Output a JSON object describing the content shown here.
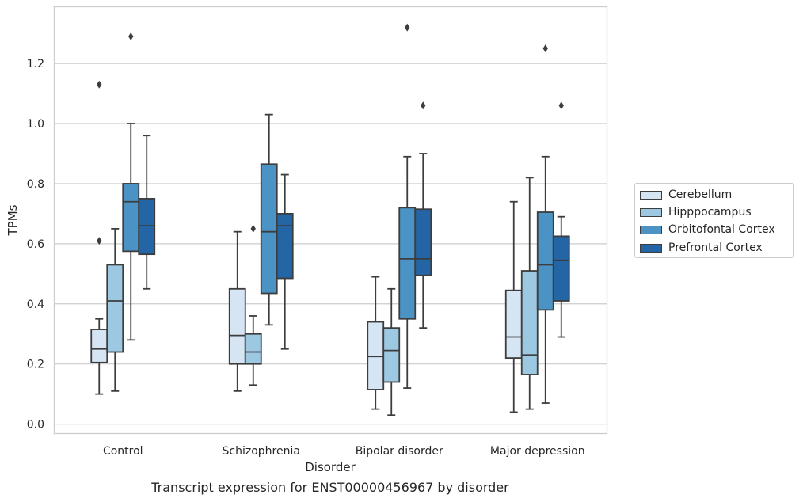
{
  "caption": "Transcript expression for ENST00000456967 by disorder",
  "legend": {
    "placement": "right",
    "items": [
      {
        "label": "Cerebellum",
        "color": "#d6e5f4"
      },
      {
        "label": "Hipppocampus",
        "color": "#9cc8e2"
      },
      {
        "label": "Orbitofontal Cortex",
        "color": "#4b93c4"
      },
      {
        "label": "Prefrontal Cortex",
        "color": "#2465a6"
      }
    ]
  },
  "chart_data": {
    "type": "box",
    "xlabel": "Disorder",
    "ylabel": "TPMs",
    "ylim": [
      -0.03,
      1.39
    ],
    "yticks": [
      "0.0",
      "0.2",
      "0.4",
      "0.6",
      "0.8",
      "1.0",
      "1.2"
    ],
    "grid": "horizontal",
    "categories": [
      "Control",
      "Schizophrenia",
      "Bipolar disorder",
      "Major depression"
    ],
    "series": [
      {
        "name": "Cerebellum",
        "color": "#d6e5f4",
        "boxes": [
          {
            "whislo": 0.1,
            "q1": 0.205,
            "med": 0.25,
            "q3": 0.315,
            "whishi": 0.35,
            "fliers": [
              0.61,
              1.13
            ]
          },
          {
            "whislo": 0.11,
            "q1": 0.2,
            "med": 0.295,
            "q3": 0.45,
            "whishi": 0.64,
            "fliers": []
          },
          {
            "whislo": 0.05,
            "q1": 0.115,
            "med": 0.225,
            "q3": 0.34,
            "whishi": 0.49,
            "fliers": []
          },
          {
            "whislo": 0.04,
            "q1": 0.22,
            "med": 0.29,
            "q3": 0.445,
            "whishi": 0.74,
            "fliers": []
          }
        ]
      },
      {
        "name": "Hipppocampus",
        "color": "#9cc8e2",
        "boxes": [
          {
            "whislo": 0.11,
            "q1": 0.24,
            "med": 0.41,
            "q3": 0.53,
            "whishi": 0.65,
            "fliers": []
          },
          {
            "whislo": 0.13,
            "q1": 0.2,
            "med": 0.24,
            "q3": 0.3,
            "whishi": 0.36,
            "fliers": [
              0.65
            ]
          },
          {
            "whislo": 0.03,
            "q1": 0.14,
            "med": 0.245,
            "q3": 0.32,
            "whishi": 0.45,
            "fliers": []
          },
          {
            "whislo": 0.05,
            "q1": 0.165,
            "med": 0.23,
            "q3": 0.51,
            "whishi": 0.82,
            "fliers": []
          }
        ]
      },
      {
        "name": "Orbitofontal Cortex",
        "color": "#4b93c4",
        "boxes": [
          {
            "whislo": 0.28,
            "q1": 0.575,
            "med": 0.74,
            "q3": 0.8,
            "whishi": 1.0,
            "fliers": [
              1.29
            ]
          },
          {
            "whislo": 0.33,
            "q1": 0.435,
            "med": 0.64,
            "q3": 0.865,
            "whishi": 1.03,
            "fliers": []
          },
          {
            "whislo": 0.12,
            "q1": 0.35,
            "med": 0.55,
            "q3": 0.72,
            "whishi": 0.89,
            "fliers": [
              1.32
            ]
          },
          {
            "whislo": 0.07,
            "q1": 0.38,
            "med": 0.53,
            "q3": 0.705,
            "whishi": 0.89,
            "fliers": [
              1.25
            ]
          }
        ]
      },
      {
        "name": "Prefrontal Cortex",
        "color": "#2465a6",
        "boxes": [
          {
            "whislo": 0.45,
            "q1": 0.565,
            "med": 0.66,
            "q3": 0.75,
            "whishi": 0.96,
            "fliers": []
          },
          {
            "whislo": 0.25,
            "q1": 0.485,
            "med": 0.66,
            "q3": 0.7,
            "whishi": 0.83,
            "fliers": []
          },
          {
            "whislo": 0.32,
            "q1": 0.495,
            "med": 0.55,
            "q3": 0.715,
            "whishi": 0.9,
            "fliers": [
              1.06
            ]
          },
          {
            "whislo": 0.29,
            "q1": 0.41,
            "med": 0.545,
            "q3": 0.625,
            "whishi": 0.69,
            "fliers": [
              1.06
            ]
          }
        ]
      }
    ]
  }
}
